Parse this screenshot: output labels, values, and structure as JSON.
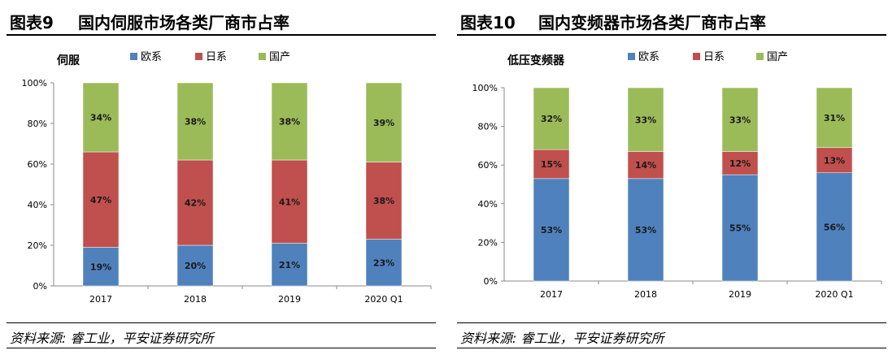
{
  "source": "资料来源: 睿工业，平安证券研究所",
  "colors": {
    "eu": "#4f81bd",
    "jp": "#c0504d",
    "cn": "#9bbb59"
  },
  "chart_data": [
    {
      "type": "bar",
      "stacked": true,
      "figure_number": "图表9",
      "title": "国内伺服市场各类厂商市占率",
      "subtitle": "伺服",
      "categories": [
        "2017",
        "2018",
        "2019",
        "2020 Q1"
      ],
      "series": [
        {
          "name": "欧系",
          "values": [
            19,
            20,
            21,
            23
          ],
          "labels": [
            "19%",
            "20%",
            "21%",
            "23%"
          ]
        },
        {
          "name": "日系",
          "values": [
            47,
            42,
            41,
            38
          ],
          "labels": [
            "47%",
            "42%",
            "41%",
            "38%"
          ]
        },
        {
          "name": "国产",
          "values": [
            34,
            38,
            38,
            39
          ],
          "labels": [
            "34%",
            "38%",
            "38%",
            "39%"
          ]
        }
      ],
      "yticks": [
        "0%",
        "20%",
        "40%",
        "60%",
        "80%",
        "100%"
      ],
      "ylim": [
        0,
        100
      ],
      "legend_position": "top"
    },
    {
      "type": "bar",
      "stacked": true,
      "figure_number": "图表10",
      "title": "国内变频器市场各类厂商市占率",
      "subtitle": "低压变频器",
      "categories": [
        "2017",
        "2018",
        "2019",
        "2020 Q1"
      ],
      "series": [
        {
          "name": "欧系",
          "values": [
            53,
            53,
            55,
            56
          ],
          "labels": [
            "53%",
            "53%",
            "55%",
            "56%"
          ]
        },
        {
          "name": "日系",
          "values": [
            15,
            14,
            12,
            13
          ],
          "labels": [
            "15%",
            "14%",
            "12%",
            "13%"
          ]
        },
        {
          "name": "国产",
          "values": [
            32,
            33,
            33,
            31
          ],
          "labels": [
            "32%",
            "33%",
            "33%",
            "31%"
          ]
        }
      ],
      "yticks": [
        "0%",
        "20%",
        "40%",
        "60%",
        "80%",
        "100%"
      ],
      "ylim": [
        0,
        100
      ],
      "legend_position": "top"
    }
  ]
}
